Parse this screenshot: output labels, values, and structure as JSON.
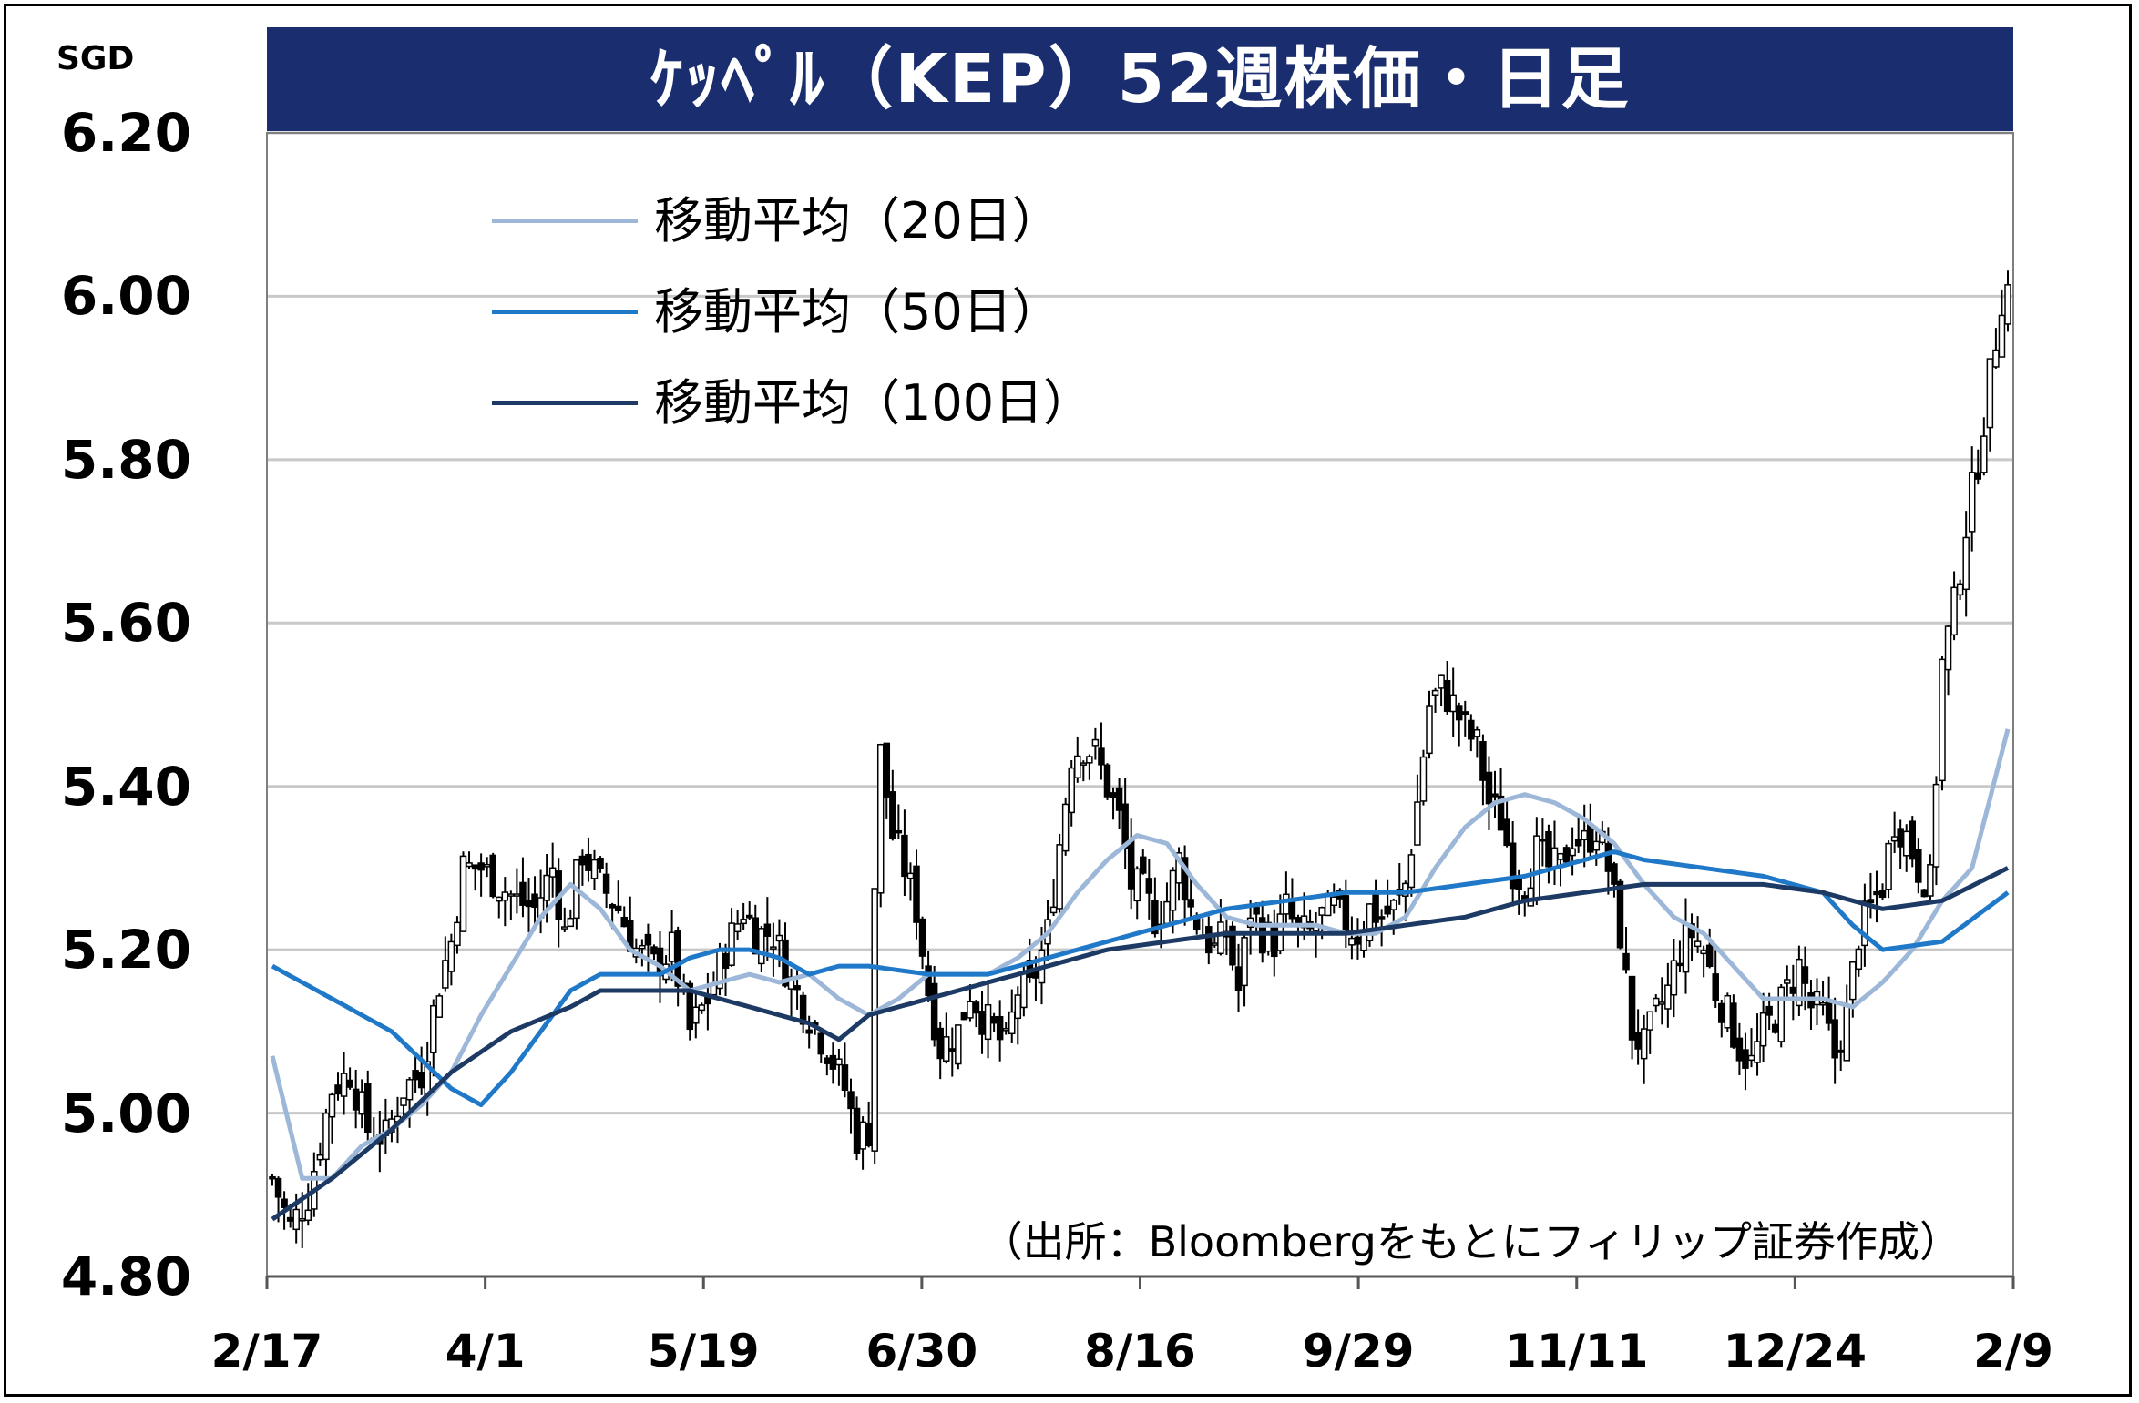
{
  "title": "ｹｯﾍﾟﾙ（KEP）52週株価・日足",
  "unit": "SGD",
  "source_note": "（出所：Bloombergをもとにフィリップ証券作成）",
  "legend": [
    {
      "label": "移動平均（20日）",
      "color": "#9db7d8"
    },
    {
      "label": "移動平均（50日）",
      "color": "#1f78c8"
    },
    {
      "label": "移動平均（100日）",
      "color": "#1c3a63"
    }
  ],
  "chart_data": {
    "type": "candlestick",
    "title": "ｹｯﾍﾟﾙ（KEP）52週株価・日足",
    "ylabel": "SGD",
    "ylim": [
      4.8,
      6.2
    ],
    "yticks": [
      "6.20",
      "6.00",
      "5.80",
      "5.60",
      "5.40",
      "5.20",
      "5.00",
      "4.80"
    ],
    "xticks": [
      "2/17",
      "4/1",
      "5/19",
      "6/30",
      "8/16",
      "9/29",
      "11/11",
      "12/24",
      "2/9"
    ],
    "grid": true,
    "legend_position": "top-left",
    "close_anchors": [
      [
        0,
        4.92
      ],
      [
        3,
        4.86
      ],
      [
        6,
        4.9
      ],
      [
        10,
        5.03
      ],
      [
        13,
        5.05
      ],
      [
        16,
        4.98
      ],
      [
        19,
        4.97
      ],
      [
        22,
        5.03
      ],
      [
        25,
        5.05
      ],
      [
        28,
        5.16
      ],
      [
        30,
        5.21
      ],
      [
        32,
        5.3
      ],
      [
        35,
        5.3
      ],
      [
        38,
        5.28
      ],
      [
        41,
        5.26
      ],
      [
        44,
        5.25
      ],
      [
        47,
        5.3
      ],
      [
        49,
        5.22
      ],
      [
        52,
        5.32
      ],
      [
        55,
        5.28
      ],
      [
        58,
        5.25
      ],
      [
        61,
        5.2
      ],
      [
        64,
        5.18
      ],
      [
        67,
        5.2
      ],
      [
        70,
        5.1
      ],
      [
        73,
        5.14
      ],
      [
        76,
        5.2
      ],
      [
        79,
        5.25
      ],
      [
        81,
        5.22
      ],
      [
        84,
        5.22
      ],
      [
        87,
        5.16
      ],
      [
        90,
        5.12
      ],
      [
        93,
        5.08
      ],
      [
        96,
        5.03
      ],
      [
        98,
        4.97
      ],
      [
        100,
        4.98
      ],
      [
        101,
        5.28
      ],
      [
        102,
        5.44
      ],
      [
        104,
        5.34
      ],
      [
        106,
        5.3
      ],
      [
        108,
        5.25
      ],
      [
        110,
        5.15
      ],
      [
        112,
        5.08
      ],
      [
        115,
        5.1
      ],
      [
        117,
        5.15
      ],
      [
        119,
        5.12
      ],
      [
        121,
        5.1
      ],
      [
        123,
        5.08
      ],
      [
        125,
        5.15
      ],
      [
        127,
        5.15
      ],
      [
        130,
        5.22
      ],
      [
        132,
        5.33
      ],
      [
        134,
        5.44
      ],
      [
        136,
        5.45
      ],
      [
        138,
        5.44
      ],
      [
        140,
        5.4
      ],
      [
        142,
        5.36
      ],
      [
        144,
        5.28
      ],
      [
        146,
        5.27
      ],
      [
        148,
        5.24
      ],
      [
        150,
        5.26
      ],
      [
        152,
        5.31
      ],
      [
        154,
        5.25
      ],
      [
        156,
        5.22
      ],
      [
        158,
        5.2
      ],
      [
        160,
        5.22
      ],
      [
        162,
        5.15
      ],
      [
        164,
        5.25
      ],
      [
        166,
        5.22
      ],
      [
        168,
        5.21
      ],
      [
        170,
        5.25
      ],
      [
        172,
        5.22
      ],
      [
        174,
        5.22
      ],
      [
        176,
        5.24
      ],
      [
        178,
        5.25
      ],
      [
        180,
        5.23
      ],
      [
        182,
        5.22
      ],
      [
        184,
        5.25
      ],
      [
        186,
        5.24
      ],
      [
        188,
        5.25
      ],
      [
        190,
        5.28
      ],
      [
        192,
        5.38
      ],
      [
        194,
        5.5
      ],
      [
        196,
        5.52
      ],
      [
        198,
        5.5
      ],
      [
        200,
        5.47
      ],
      [
        202,
        5.45
      ],
      [
        204,
        5.38
      ],
      [
        206,
        5.36
      ],
      [
        208,
        5.3
      ],
      [
        210,
        5.28
      ],
      [
        212,
        5.32
      ],
      [
        214,
        5.3
      ],
      [
        216,
        5.3
      ],
      [
        218,
        5.34
      ],
      [
        220,
        5.33
      ],
      [
        222,
        5.35
      ],
      [
        224,
        5.3
      ],
      [
        226,
        5.22
      ],
      [
        228,
        5.1
      ],
      [
        230,
        5.08
      ],
      [
        232,
        5.12
      ],
      [
        234,
        5.15
      ],
      [
        236,
        5.2
      ],
      [
        238,
        5.22
      ],
      [
        240,
        5.2
      ],
      [
        242,
        5.15
      ],
      [
        244,
        5.12
      ],
      [
        246,
        5.08
      ],
      [
        248,
        5.06
      ],
      [
        250,
        5.1
      ],
      [
        252,
        5.12
      ],
      [
        254,
        5.15
      ],
      [
        256,
        5.18
      ],
      [
        258,
        5.13
      ],
      [
        260,
        5.12
      ],
      [
        262,
        5.07
      ],
      [
        264,
        5.12
      ],
      [
        266,
        5.22
      ],
      [
        268,
        5.25
      ],
      [
        270,
        5.28
      ],
      [
        272,
        5.36
      ],
      [
        274,
        5.34
      ],
      [
        276,
        5.3
      ],
      [
        278,
        5.28
      ],
      [
        280,
        5.55
      ],
      [
        282,
        5.62
      ],
      [
        284,
        5.72
      ],
      [
        286,
        5.8
      ],
      [
        288,
        5.9
      ],
      [
        290,
        6.0
      ],
      [
        291,
        6.01
      ]
    ],
    "ma_anchors": {
      "ma20": [
        [
          0,
          5.07
        ],
        [
          5,
          4.92
        ],
        [
          10,
          4.92
        ],
        [
          15,
          4.96
        ],
        [
          20,
          4.98
        ],
        [
          25,
          5.01
        ],
        [
          30,
          5.05
        ],
        [
          35,
          5.12
        ],
        [
          40,
          5.18
        ],
        [
          45,
          5.24
        ],
        [
          50,
          5.28
        ],
        [
          55,
          5.25
        ],
        [
          60,
          5.2
        ],
        [
          65,
          5.18
        ],
        [
          70,
          5.15
        ],
        [
          75,
          5.16
        ],
        [
          80,
          5.17
        ],
        [
          85,
          5.16
        ],
        [
          90,
          5.17
        ],
        [
          95,
          5.14
        ],
        [
          100,
          5.12
        ],
        [
          105,
          5.14
        ],
        [
          110,
          5.17
        ],
        [
          115,
          5.17
        ],
        [
          120,
          5.17
        ],
        [
          125,
          5.19
        ],
        [
          130,
          5.22
        ],
        [
          135,
          5.27
        ],
        [
          140,
          5.31
        ],
        [
          145,
          5.34
        ],
        [
          150,
          5.33
        ],
        [
          155,
          5.28
        ],
        [
          160,
          5.24
        ],
        [
          165,
          5.23
        ],
        [
          170,
          5.23
        ],
        [
          175,
          5.23
        ],
        [
          180,
          5.22
        ],
        [
          185,
          5.22
        ],
        [
          190,
          5.24
        ],
        [
          195,
          5.3
        ],
        [
          200,
          5.35
        ],
        [
          205,
          5.38
        ],
        [
          210,
          5.39
        ],
        [
          215,
          5.38
        ],
        [
          220,
          5.36
        ],
        [
          225,
          5.33
        ],
        [
          230,
          5.28
        ],
        [
          235,
          5.24
        ],
        [
          240,
          5.22
        ],
        [
          245,
          5.18
        ],
        [
          250,
          5.14
        ],
        [
          255,
          5.14
        ],
        [
          260,
          5.14
        ],
        [
          265,
          5.13
        ],
        [
          270,
          5.16
        ],
        [
          275,
          5.2
        ],
        [
          280,
          5.26
        ],
        [
          285,
          5.3
        ],
        [
          291,
          5.47
        ]
      ],
      "ma50": [
        [
          0,
          5.18
        ],
        [
          10,
          5.14
        ],
        [
          20,
          5.1
        ],
        [
          30,
          5.03
        ],
        [
          35,
          5.01
        ],
        [
          40,
          5.05
        ],
        [
          45,
          5.1
        ],
        [
          50,
          5.15
        ],
        [
          55,
          5.17
        ],
        [
          60,
          5.17
        ],
        [
          65,
          5.17
        ],
        [
          70,
          5.19
        ],
        [
          75,
          5.2
        ],
        [
          80,
          5.2
        ],
        [
          85,
          5.19
        ],
        [
          90,
          5.17
        ],
        [
          95,
          5.18
        ],
        [
          100,
          5.18
        ],
        [
          110,
          5.17
        ],
        [
          120,
          5.17
        ],
        [
          130,
          5.19
        ],
        [
          140,
          5.21
        ],
        [
          150,
          5.23
        ],
        [
          160,
          5.25
        ],
        [
          170,
          5.26
        ],
        [
          180,
          5.27
        ],
        [
          190,
          5.27
        ],
        [
          200,
          5.28
        ],
        [
          210,
          5.29
        ],
        [
          220,
          5.31
        ],
        [
          225,
          5.32
        ],
        [
          230,
          5.31
        ],
        [
          240,
          5.3
        ],
        [
          250,
          5.29
        ],
        [
          260,
          5.27
        ],
        [
          265,
          5.23
        ],
        [
          270,
          5.2
        ],
        [
          280,
          5.21
        ],
        [
          291,
          5.27
        ]
      ],
      "ma100": [
        [
          0,
          4.87
        ],
        [
          10,
          4.92
        ],
        [
          20,
          4.98
        ],
        [
          30,
          5.05
        ],
        [
          40,
          5.1
        ],
        [
          50,
          5.13
        ],
        [
          55,
          5.15
        ],
        [
          60,
          5.15
        ],
        [
          70,
          5.15
        ],
        [
          80,
          5.13
        ],
        [
          90,
          5.11
        ],
        [
          95,
          5.09
        ],
        [
          100,
          5.12
        ],
        [
          110,
          5.14
        ],
        [
          120,
          5.16
        ],
        [
          130,
          5.18
        ],
        [
          140,
          5.2
        ],
        [
          150,
          5.21
        ],
        [
          160,
          5.22
        ],
        [
          170,
          5.22
        ],
        [
          180,
          5.22
        ],
        [
          190,
          5.23
        ],
        [
          200,
          5.24
        ],
        [
          210,
          5.26
        ],
        [
          220,
          5.27
        ],
        [
          230,
          5.28
        ],
        [
          240,
          5.28
        ],
        [
          250,
          5.28
        ],
        [
          260,
          5.27
        ],
        [
          265,
          5.26
        ],
        [
          270,
          5.25
        ],
        [
          280,
          5.26
        ],
        [
          291,
          5.3
        ]
      ]
    }
  }
}
